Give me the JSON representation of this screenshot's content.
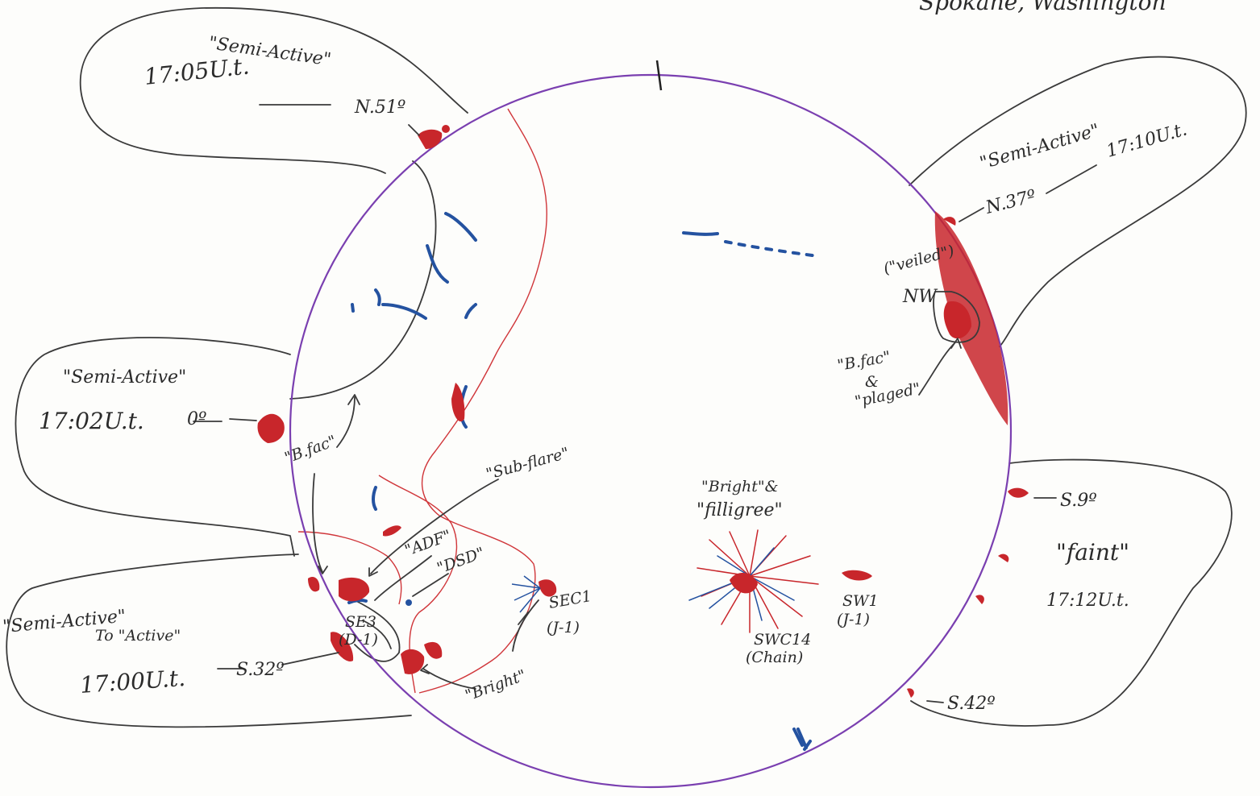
{
  "header": {
    "text_left": "",
    "text_right": "Spokane, Washington"
  },
  "callouts": {
    "nw_upper": {
      "quote": "\"Semi-Active\"",
      "time": "17:05U.t.",
      "lat": "N.51º"
    },
    "west_mid": {
      "quote": "\"Semi-Active\"",
      "time": "17:02U.t.",
      "lat": "0º"
    },
    "sw_lower": {
      "quote1": "\"Semi-Active\"",
      "quote2": "To \"Active\"",
      "time": "17:00U.t.",
      "lat": "S.32º"
    },
    "ne": {
      "quote": "\"Semi-Active\"",
      "time": "17:10U.t.",
      "lat": "N.37º"
    },
    "se": {
      "lat_top": "S.9º",
      "quote": "\"faint\"",
      "time": "17:12U.t.",
      "lat_bottom": "S.42º"
    }
  },
  "labels": {
    "b_fac_left": "\"B.fac\"",
    "sub_flare": "\"Sub-flare\"",
    "adf": "\"ADF\"",
    "dsd": "\"DSD\"",
    "se3": "SE3",
    "se3_class": "(D-1)",
    "sec1": "SEC1",
    "sec1_class": "(J-1)",
    "bright_lower": "\"Bright\"",
    "bright_filigree_1": "\"Bright\"&",
    "bright_filigree_2": "\"filligree\"",
    "swc14": "SWC14",
    "swc14_note": "(Chain)",
    "sw1": "SW1",
    "sw1_class": "(J-1)",
    "veiled": "(\"veiled\")",
    "nw": "NW",
    "b_fac_right": "\"B.fac\"",
    "amp": "&",
    "plaged": "\"plaged\""
  },
  "colors": {
    "limb": "#7a3fb0",
    "plage": "#c8262b",
    "filament": "#2452a0",
    "pencil": "#3a3a3a"
  }
}
